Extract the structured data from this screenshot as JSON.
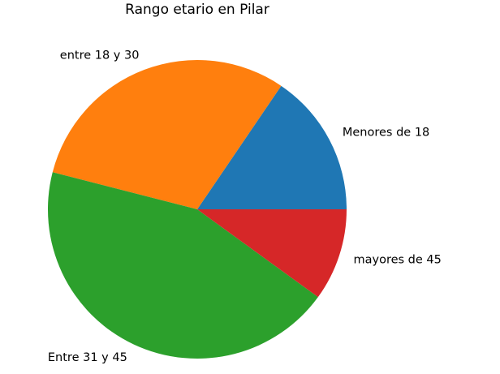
{
  "chart_data": {
    "type": "pie",
    "title": "Rango etario en Pilar",
    "start_angle_deg": 0,
    "direction": "counterclockwise",
    "slices": [
      {
        "label": "Menores de 18",
        "value": 15.5,
        "color": "#1f77b4"
      },
      {
        "label": "entre 18 y 30",
        "value": 30.5,
        "color": "#ff7f0e"
      },
      {
        "label": "Entre 31 y 45",
        "value": 44.0,
        "color": "#2ca02c"
      },
      {
        "label": "mayores de 45",
        "value": 10.0,
        "color": "#d62728"
      }
    ]
  }
}
